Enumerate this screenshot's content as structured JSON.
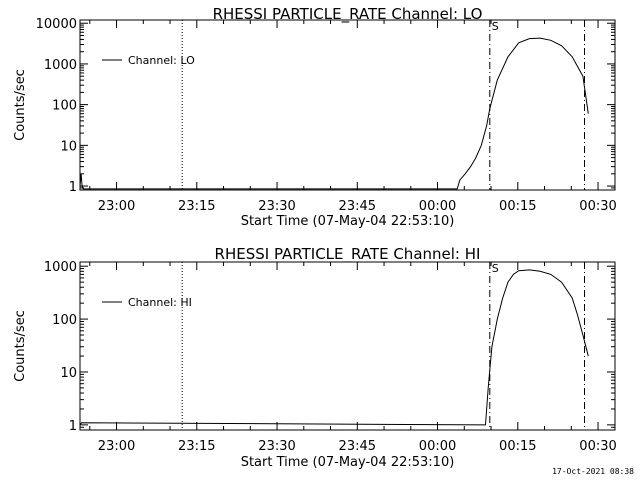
{
  "footer_timestamp": "17-Oct-2021 08:38",
  "chart_data": [
    {
      "type": "line",
      "title": "RHESSI PARTICLE_RATE Channel: LO",
      "xlabel": "Start Time (07-May-04 22:53:10)",
      "ylabel": "Counts/sec",
      "yscale": "log",
      "ylim": [
        0.8,
        12000
      ],
      "xlim_min": [
        0,
        100
      ],
      "x_unit": "minutes after start time",
      "x_ticks": [
        {
          "value": 6.83,
          "label": "23:00"
        },
        {
          "value": 21.83,
          "label": "23:15"
        },
        {
          "value": 36.83,
          "label": "23:30"
        },
        {
          "value": 51.83,
          "label": "23:45"
        },
        {
          "value": 66.83,
          "label": "00:00"
        },
        {
          "value": 81.83,
          "label": "00:15"
        },
        {
          "value": 96.83,
          "label": "00:30"
        }
      ],
      "y_ticks": [
        {
          "value": 1,
          "label": "1"
        },
        {
          "value": 10,
          "label": "10"
        },
        {
          "value": 100,
          "label": "100"
        },
        {
          "value": 1000,
          "label": "1000"
        },
        {
          "value": 10000,
          "label": "10000"
        }
      ],
      "legend": {
        "label": "Channel: LO",
        "placement": "top-left"
      },
      "markers": [
        {
          "x": 19.1,
          "style": "dotted"
        },
        {
          "x": 76.6,
          "style": "dashdot",
          "label": "S"
        },
        {
          "x": 94.3,
          "style": "dashdot"
        }
      ],
      "series": [
        {
          "name": "Channel: LO",
          "x": [
            0,
            0.2,
            0.4,
            0.6,
            70.5,
            71,
            72,
            73,
            74,
            75,
            76,
            76.6,
            78,
            80,
            82,
            84,
            86,
            88,
            90,
            92,
            94,
            95
          ],
          "y": [
            1,
            2,
            1,
            0.85,
            0.85,
            1.4,
            2,
            3,
            5,
            10,
            30,
            80,
            400,
            1500,
            3300,
            4200,
            4300,
            3800,
            2800,
            1500,
            500,
            60
          ]
        }
      ]
    },
    {
      "type": "line",
      "title": "RHESSI PARTICLE_RATE Channel: HI",
      "xlabel": "Start Time (07-May-04 22:53:10)",
      "ylabel": "Counts/sec",
      "yscale": "log",
      "ylim": [
        0.8,
        1200
      ],
      "xlim_min": [
        0,
        100
      ],
      "x_unit": "minutes after start time",
      "x_ticks": [
        {
          "value": 6.83,
          "label": "23:00"
        },
        {
          "value": 21.83,
          "label": "23:15"
        },
        {
          "value": 36.83,
          "label": "23:30"
        },
        {
          "value": 51.83,
          "label": "23:45"
        },
        {
          "value": 66.83,
          "label": "00:00"
        },
        {
          "value": 81.83,
          "label": "00:15"
        },
        {
          "value": 96.83,
          "label": "00:30"
        }
      ],
      "y_ticks": [
        {
          "value": 1,
          "label": "1"
        },
        {
          "value": 10,
          "label": "10"
        },
        {
          "value": 100,
          "label": "100"
        },
        {
          "value": 1000,
          "label": "1000"
        }
      ],
      "legend": {
        "label": "Channel: HI",
        "placement": "top-left"
      },
      "markers": [
        {
          "x": 19.1,
          "style": "dotted"
        },
        {
          "x": 76.6,
          "style": "dashdot",
          "label": "S"
        },
        {
          "x": 94.3,
          "style": "dashdot"
        }
      ],
      "series": [
        {
          "name": "Channel: HI",
          "x": [
            0,
            0.3,
            75.8,
            76.3,
            77,
            78,
            79,
            80,
            81,
            82,
            84,
            86,
            88,
            90,
            92,
            93,
            94,
            95
          ],
          "y": [
            1,
            1.1,
            1,
            5,
            30,
            100,
            250,
            500,
            700,
            820,
            850,
            800,
            700,
            500,
            250,
            120,
            50,
            20
          ]
        }
      ]
    }
  ]
}
